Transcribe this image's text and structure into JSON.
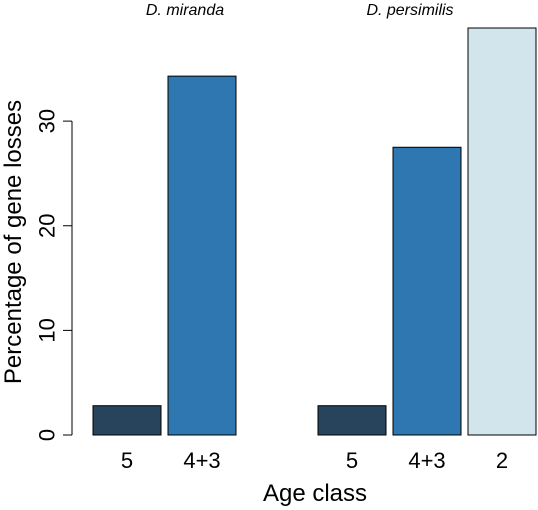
{
  "chart_data": {
    "type": "bar",
    "ylabel": "Percentage of gene losses",
    "xlabel": "Age class",
    "ylim": [
      0,
      38.9
    ],
    "yticks": [
      0,
      10,
      20,
      30
    ],
    "grid": false,
    "colors": {
      "5": "#27445c",
      "4+3": "#2e77b0",
      "2": "#d3e5ec"
    },
    "groups": [
      {
        "title": "D. miranda",
        "categories": [
          "5",
          "4+3"
        ],
        "values": [
          2.8,
          34.3
        ]
      },
      {
        "title": "D. persimilis",
        "categories": [
          "5",
          "4+3",
          "2"
        ],
        "values": [
          2.8,
          27.5,
          38.9
        ]
      }
    ]
  }
}
